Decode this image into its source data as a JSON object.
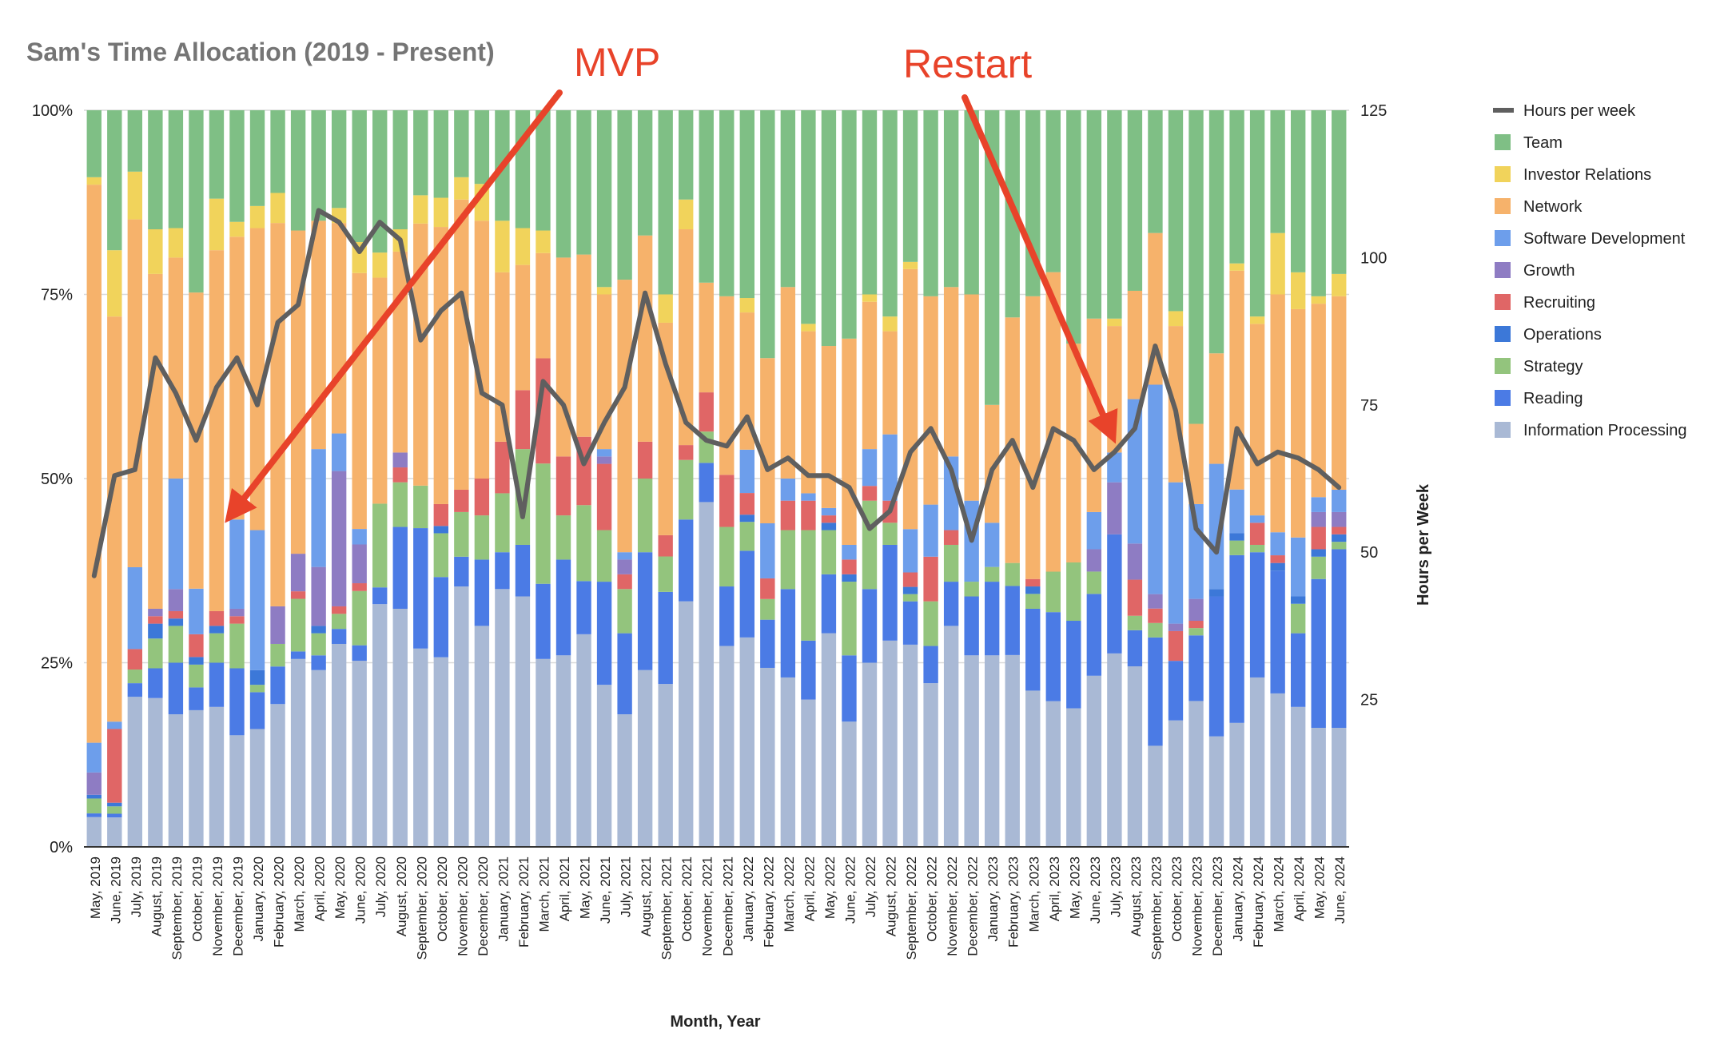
{
  "chart_data": {
    "type": "bar",
    "stacked": true,
    "normalized": true,
    "title": "Sam's Time Allocation (2019 - Present)",
    "xlabel": "Month, Year",
    "ylabel": "",
    "y2label": "Hours per Week",
    "ylim": [
      0,
      1
    ],
    "y_ticks": [
      "0%",
      "25%",
      "50%",
      "75%",
      "100%"
    ],
    "y2lim": [
      0,
      125
    ],
    "y2_ticks": [
      "25",
      "50",
      "75",
      "100",
      "125"
    ],
    "grid": true,
    "legend_position": "right",
    "categories": [
      "May, 2019",
      "June, 2019",
      "July, 2019",
      "August, 2019",
      "September, 2019",
      "October, 2019",
      "November, 2019",
      "December, 2019",
      "January, 2020",
      "February, 2020",
      "March, 2020",
      "April, 2020",
      "May, 2020",
      "June, 2020",
      "July, 2020",
      "August, 2020",
      "September, 2020",
      "October, 2020",
      "November, 2020",
      "December, 2020",
      "January, 2021",
      "February, 2021",
      "March, 2021",
      "April, 2021",
      "May, 2021",
      "June, 2021",
      "July, 2021",
      "August, 2021",
      "September, 2021",
      "October, 2021",
      "November, 2021",
      "December, 2021",
      "January, 2022",
      "February, 2022",
      "March, 2022",
      "April, 2022",
      "May, 2022",
      "June, 2022",
      "July, 2022",
      "August, 2022",
      "September, 2022",
      "October, 2022",
      "November, 2022",
      "December, 2022",
      "January, 2023",
      "February, 2023",
      "March, 2023",
      "April, 2023",
      "May, 2023",
      "June, 2023",
      "July, 2023",
      "August, 2023",
      "September, 2023",
      "October, 2023",
      "November, 2023",
      "December, 2023",
      "January, 2024",
      "February, 2024",
      "March, 2024",
      "April, 2024",
      "May, 2024",
      "June, 2024"
    ],
    "series": [
      {
        "name": "Information Processing",
        "color": "#a9b9d5",
        "values": [
          0.04,
          0.04,
          0.22,
          0.2,
          0.18,
          0.18,
          0.19,
          0.15,
          0.16,
          0.19,
          0.25,
          0.24,
          0.27,
          0.24,
          0.29,
          0.32,
          0.28,
          0.26,
          0.35,
          0.3,
          0.35,
          0.34,
          0.25,
          0.26,
          0.28,
          0.22,
          0.18,
          0.24,
          0.23,
          0.33,
          0.44,
          0.27,
          0.29,
          0.26,
          0.23,
          0.2,
          0.29,
          0.17,
          0.25,
          0.28,
          0.28,
          0.22,
          0.3,
          0.26,
          0.26,
          0.25,
          0.21,
          0.18,
          0.19,
          0.23,
          0.26,
          0.25,
          0.14,
          0.17,
          0.2,
          0.15,
          0.17,
          0.23,
          0.2,
          0.19,
          0.16,
          0.16
        ]
      },
      {
        "name": "Reading",
        "color": "#4b7be5",
        "values": [
          0.005,
          0.005,
          0.02,
          0.04,
          0.07,
          0.03,
          0.06,
          0.09,
          0.05,
          0.05,
          0.01,
          0.02,
          0.02,
          0.02,
          0.02,
          0.11,
          0.17,
          0.11,
          0.04,
          0.09,
          0.05,
          0.07,
          0.1,
          0.13,
          0.07,
          0.14,
          0.11,
          0.16,
          0.13,
          0.11,
          0.05,
          0.08,
          0.12,
          0.07,
          0.12,
          0.08,
          0.08,
          0.09,
          0.1,
          0.13,
          0.06,
          0.05,
          0.06,
          0.08,
          0.1,
          0.09,
          0.11,
          0.11,
          0.12,
          0.11,
          0.16,
          0.05,
          0.15,
          0.08,
          0.09,
          0.19,
          0.23,
          0.17,
          0.16,
          0.1,
          0.2,
          0.24
        ]
      },
      {
        "name": "Strategy",
        "color": "#93c47d",
        "values": [
          0.02,
          0.01,
          0.02,
          0.04,
          0.05,
          0.03,
          0.04,
          0.06,
          0.01,
          0.03,
          0.07,
          0.03,
          0.02,
          0.07,
          0.1,
          0.06,
          0.06,
          0.06,
          0.06,
          0.06,
          0.08,
          0.13,
          0.16,
          0.06,
          0.1,
          0.07,
          0.06,
          0.1,
          0.05,
          0.08,
          0.04,
          0.08,
          0.04,
          0.03,
          0.08,
          0.15,
          0.06,
          0.1,
          0.12,
          0.03,
          0.01,
          0.06,
          0.05,
          0.02,
          0.02,
          0.03,
          0.02,
          0.05,
          0.08,
          0.03,
          0.0,
          0.02,
          0.02,
          0.0,
          0.01,
          0.0,
          0.02,
          0.01,
          0.0,
          0.04,
          0.03,
          0.01
        ]
      },
      {
        "name": "Operations",
        "color": "#3c78d8",
        "values": [
          0.005,
          0.005,
          0.0,
          0.02,
          0.01,
          0.01,
          0.01,
          0.0,
          0.02,
          0.0,
          0.0,
          0.01,
          0.0,
          0.0,
          0.0,
          0.0,
          0.0,
          0.01,
          0.0,
          0.0,
          0.0,
          0.0,
          0.0,
          0.0,
          0.0,
          0.0,
          0.0,
          0.0,
          0.0,
          0.0,
          0.0,
          0.0,
          0.01,
          0.0,
          0.0,
          0.0,
          0.01,
          0.01,
          0.0,
          0.0,
          0.01,
          0.0,
          0.0,
          0.0,
          0.0,
          0.0,
          0.01,
          0.0,
          0.0,
          0.0,
          0.0,
          0.0,
          0.0,
          0.0,
          0.0,
          0.01,
          0.01,
          0.0,
          0.01,
          0.01,
          0.01,
          0.01
        ]
      },
      {
        "name": "Recruiting",
        "color": "#e06666",
        "values": [
          0.0,
          0.1,
          0.03,
          0.01,
          0.01,
          0.03,
          0.02,
          0.01,
          0.0,
          0.0,
          0.01,
          0.0,
          0.01,
          0.01,
          0.0,
          0.02,
          0.0,
          0.03,
          0.03,
          0.05,
          0.07,
          0.08,
          0.14,
          0.08,
          0.09,
          0.09,
          0.02,
          0.05,
          0.03,
          0.02,
          0.05,
          0.07,
          0.03,
          0.03,
          0.04,
          0.04,
          0.01,
          0.02,
          0.02,
          0.03,
          0.02,
          0.06,
          0.02,
          0.0,
          0.0,
          0.0,
          0.01,
          0.0,
          0.0,
          0.0,
          0.0,
          0.05,
          0.02,
          0.04,
          0.01,
          0.0,
          0.0,
          0.03,
          0.01,
          0.0,
          0.03,
          0.01
        ]
      },
      {
        "name": "Growth",
        "color": "#8e7cc3",
        "values": [
          0.03,
          0.0,
          0.0,
          0.01,
          0.03,
          0.0,
          0.0,
          0.01,
          0.0,
          0.05,
          0.05,
          0.08,
          0.18,
          0.05,
          0.0,
          0.02,
          0.0,
          0.0,
          0.0,
          0.0,
          0.0,
          0.0,
          0.0,
          0.0,
          0.0,
          0.01,
          0.02,
          0.0,
          0.0,
          0.0,
          0.0,
          0.0,
          0.0,
          0.0,
          0.0,
          0.0,
          0.0,
          0.0,
          0.0,
          0.0,
          0.0,
          0.0,
          0.0,
          0.0,
          0.0,
          0.0,
          0.0,
          0.0,
          0.0,
          0.03,
          0.07,
          0.05,
          0.02,
          0.01,
          0.03,
          0.0,
          0.0,
          0.0,
          0.0,
          0.0,
          0.02,
          0.02
        ]
      },
      {
        "name": "Software Development",
        "color": "#6d9eeb",
        "values": [
          0.04,
          0.01,
          0.12,
          0.0,
          0.15,
          0.06,
          0.0,
          0.12,
          0.19,
          0.0,
          0.0,
          0.16,
          0.05,
          0.02,
          0.0,
          0.0,
          0.0,
          0.0,
          0.0,
          0.0,
          0.0,
          0.0,
          0.0,
          0.0,
          0.0,
          0.01,
          0.01,
          0.0,
          0.0,
          0.0,
          0.0,
          0.0,
          0.06,
          0.08,
          0.03,
          0.01,
          0.01,
          0.02,
          0.05,
          0.09,
          0.06,
          0.07,
          0.1,
          0.11,
          0.06,
          0.0,
          0.0,
          0.0,
          0.0,
          0.05,
          0.04,
          0.2,
          0.29,
          0.19,
          0.13,
          0.17,
          0.06,
          0.01,
          0.03,
          0.08,
          0.02,
          0.03
        ]
      },
      {
        "name": "Network",
        "color": "#f6b26b",
        "values": [
          0.75,
          0.55,
          0.51,
          0.45,
          0.3,
          0.39,
          0.49,
          0.38,
          0.41,
          0.51,
          0.43,
          0.31,
          0.28,
          0.33,
          0.27,
          0.27,
          0.37,
          0.38,
          0.39,
          0.35,
          0.23,
          0.17,
          0.14,
          0.27,
          0.24,
          0.21,
          0.37,
          0.28,
          0.3,
          0.29,
          0.14,
          0.24,
          0.19,
          0.24,
          0.26,
          0.22,
          0.22,
          0.28,
          0.2,
          0.14,
          0.36,
          0.28,
          0.23,
          0.28,
          0.16,
          0.32,
          0.38,
          0.37,
          0.3,
          0.26,
          0.17,
          0.15,
          0.21,
          0.21,
          0.11,
          0.15,
          0.3,
          0.26,
          0.31,
          0.31,
          0.26,
          0.26
        ]
      },
      {
        "name": "Investor Relations",
        "color": "#f1d35b",
        "values": [
          0.01,
          0.09,
          0.07,
          0.06,
          0.04,
          0.0,
          0.07,
          0.02,
          0.03,
          0.04,
          0.0,
          0.0,
          0.02,
          0.04,
          0.03,
          0.03,
          0.04,
          0.04,
          0.03,
          0.05,
          0.07,
          0.05,
          0.03,
          0.0,
          0.0,
          0.01,
          0.0,
          0.0,
          0.04,
          0.04,
          0.0,
          0.0,
          0.02,
          0.0,
          0.0,
          0.01,
          0.0,
          0.0,
          0.01,
          0.02,
          0.01,
          0.0,
          0.0,
          0.0,
          0.0,
          0.0,
          0.0,
          0.0,
          0.0,
          0.0,
          0.01,
          0.0,
          0.0,
          0.02,
          0.0,
          0.0,
          0.01,
          0.01,
          0.08,
          0.05,
          0.01,
          0.03
        ]
      },
      {
        "name": "Team",
        "color": "#7fbf85",
        "values": [
          0.09,
          0.19,
          0.09,
          0.16,
          0.16,
          0.24,
          0.12,
          0.15,
          0.13,
          0.11,
          0.16,
          0.15,
          0.13,
          0.17,
          0.17,
          0.16,
          0.12,
          0.12,
          0.09,
          0.1,
          0.15,
          0.16,
          0.16,
          0.2,
          0.19,
          0.24,
          0.23,
          0.17,
          0.26,
          0.12,
          0.22,
          0.25,
          0.26,
          0.36,
          0.24,
          0.29,
          0.32,
          0.31,
          0.25,
          0.28,
          0.21,
          0.25,
          0.24,
          0.25,
          0.4,
          0.27,
          0.25,
          0.2,
          0.32,
          0.28,
          0.28,
          0.25,
          0.17,
          0.27,
          0.43,
          0.33,
          0.21,
          0.28,
          0.16,
          0.22,
          0.25,
          0.22
        ]
      }
    ],
    "line_series": {
      "name": "Hours per week",
      "color": "#5f5f5f",
      "axis": "right",
      "values": [
        46,
        63,
        64,
        83,
        77,
        69,
        78,
        83,
        75,
        89,
        92,
        108,
        106,
        101,
        106,
        103,
        86,
        91,
        94,
        77,
        75,
        56,
        79,
        75,
        65,
        72,
        78,
        94,
        82,
        72,
        69,
        68,
        73,
        64,
        66,
        63,
        63,
        61,
        54,
        57,
        67,
        71,
        64,
        52,
        64,
        69,
        61,
        71,
        69,
        64,
        67,
        71,
        85,
        74,
        54,
        50,
        71,
        65,
        67,
        66,
        64,
        61
      ]
    },
    "annotations": [
      {
        "text": "MVP",
        "color": "#e8432a"
      },
      {
        "text": "Restart",
        "color": "#e8432a"
      }
    ],
    "legend_entries": [
      "Hours per week",
      "Team",
      "Investor Relations",
      "Network",
      "Software Development",
      "Growth",
      "Recruiting",
      "Operations",
      "Strategy",
      "Reading",
      "Information Processing"
    ]
  }
}
